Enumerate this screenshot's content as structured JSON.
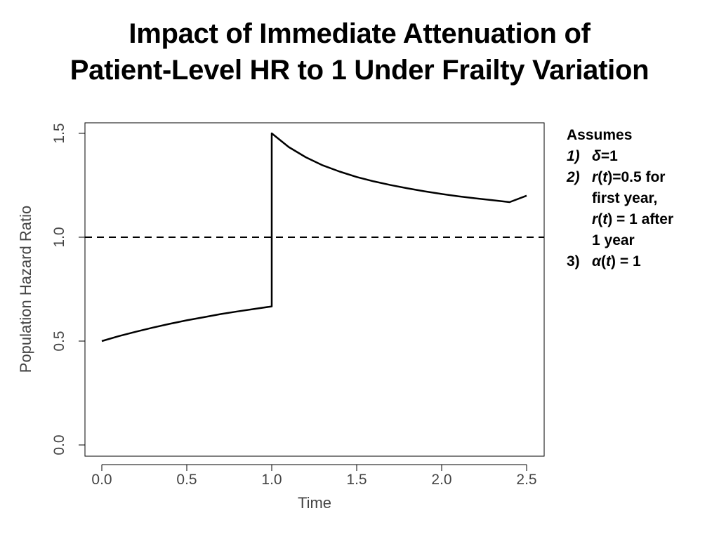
{
  "slide": {
    "title_line1": "Impact of Immediate Attenuation of",
    "title_line2": "Patient-Level HR to 1 Under Frailty Variation"
  },
  "notes": {
    "heading": "Assumes",
    "item1": {
      "num": "1)",
      "sym": "δ",
      "rest": "=1"
    },
    "item2": {
      "num": "2)",
      "line1": {
        "r": "r",
        "t": "t",
        "rest": "=0.5 for"
      },
      "line2": "first year,",
      "line3": {
        "r": "r",
        "t": "t",
        "rest": " = 1 after"
      },
      "line4": "1 year"
    },
    "item3": {
      "num": "3)",
      "sym": "α",
      "t": "t",
      "rest": " = 1"
    }
  },
  "chart_data": {
    "type": "line",
    "title": "",
    "xlabel": "Time",
    "ylabel": "Population Hazard Ratio",
    "xlim": [
      0,
      2.5
    ],
    "ylim": [
      0,
      1.5
    ],
    "xticks": [
      "0.0",
      "0.5",
      "1.0",
      "1.5",
      "2.0",
      "2.5"
    ],
    "yticks": [
      "0.0",
      "0.5",
      "1.0",
      "1.5"
    ],
    "grid": false,
    "series": [
      {
        "style": "solid",
        "x": [
          0,
          0.1,
          0.2,
          0.3,
          0.4,
          0.5,
          0.6,
          0.7,
          0.8,
          0.9,
          1.0,
          1.0,
          1.1,
          1.2,
          1.3,
          1.4,
          1.5,
          1.6,
          1.7,
          1.8,
          1.9,
          2.0,
          2.1,
          2.2,
          2.3,
          2.4,
          2.5
        ],
        "y": [
          0.5,
          0.524,
          0.545,
          0.565,
          0.583,
          0.6,
          0.615,
          0.63,
          0.643,
          0.655,
          0.667,
          1.5,
          1.434,
          1.385,
          1.346,
          1.316,
          1.29,
          1.269,
          1.251,
          1.235,
          1.221,
          1.208,
          1.197,
          1.187,
          1.178,
          1.169,
          1.2
        ]
      }
    ],
    "reference_lines": [
      {
        "style": "dashed",
        "y": 1.0
      }
    ]
  }
}
